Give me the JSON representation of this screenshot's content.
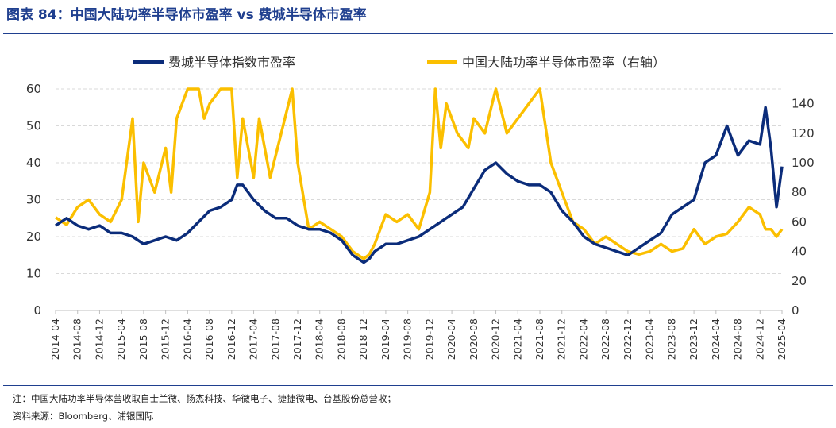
{
  "figure": {
    "title": "图表 84：中国大陆功率半导体市盈率 vs 费城半导体市盈率",
    "note": "注：中国大陆功率半导体营收取自士兰微、扬杰科技、华微电子、捷捷微电、台基股份总营收；",
    "source": "资料来源：Bloomberg、浦银国际"
  },
  "colors": {
    "sox": "#0b2c7a",
    "china": "#fbbf00",
    "grid": "#d9d9d9"
  },
  "chart_data": {
    "type": "line",
    "title": "",
    "legend_position": "top",
    "grid": true,
    "x_tick_labels": [
      "2014-04",
      "2014-08",
      "2014-12",
      "2015-04",
      "2015-08",
      "2015-12",
      "2016-04",
      "2016-08",
      "2016-12",
      "2017-04",
      "2017-08",
      "2017-12",
      "2018-04",
      "2018-08",
      "2018-12",
      "2019-04",
      "2019-08",
      "2019-12",
      "2020-04",
      "2020-08",
      "2020-12",
      "2021-04",
      "2021-08",
      "2021-12",
      "2022-04",
      "2022-08",
      "2022-12",
      "2023-04",
      "2023-08",
      "2023-12",
      "2024-04",
      "2024-08",
      "2024-12",
      "2025-04"
    ],
    "y_left": {
      "min": 0,
      "max": 60,
      "ticks": [
        "0",
        "10",
        "20",
        "30",
        "40",
        "50",
        "60"
      ]
    },
    "y_right": {
      "min": 0,
      "max": 150,
      "ticks": [
        "0",
        "20",
        "40",
        "60",
        "80",
        "100",
        "120",
        "140"
      ]
    },
    "series": [
      {
        "name": "费城半导体指数市盈率",
        "axis": "left",
        "x": [
          "2014-04",
          "2014-06",
          "2014-08",
          "2014-10",
          "2014-12",
          "2015-02",
          "2015-04",
          "2015-06",
          "2015-08",
          "2015-10",
          "2015-12",
          "2016-02",
          "2016-04",
          "2016-06",
          "2016-08",
          "2016-10",
          "2016-12",
          "2017-01",
          "2017-02",
          "2017-04",
          "2017-06",
          "2017-08",
          "2017-10",
          "2017-12",
          "2018-02",
          "2018-04",
          "2018-06",
          "2018-08",
          "2018-10",
          "2018-12",
          "2019-01",
          "2019-02",
          "2019-04",
          "2019-06",
          "2019-08",
          "2019-10",
          "2019-12",
          "2020-02",
          "2020-04",
          "2020-06",
          "2020-08",
          "2020-10",
          "2020-12",
          "2021-02",
          "2021-04",
          "2021-06",
          "2021-08",
          "2021-10",
          "2021-12",
          "2022-02",
          "2022-04",
          "2022-06",
          "2022-08",
          "2022-10",
          "2022-12",
          "2023-02",
          "2023-04",
          "2023-06",
          "2023-08",
          "2023-10",
          "2023-12",
          "2024-02",
          "2024-04",
          "2024-06",
          "2024-08",
          "2024-10",
          "2024-12",
          "2025-01",
          "2025-02",
          "2025-03",
          "2025-04"
        ],
        "values": [
          23,
          25,
          23,
          22,
          23,
          21,
          21,
          20,
          18,
          19,
          20,
          19,
          21,
          24,
          27,
          28,
          30,
          34,
          34,
          30,
          27,
          25,
          25,
          23,
          22,
          22,
          21,
          19,
          15,
          13,
          14,
          16,
          18,
          18,
          19,
          20,
          22,
          24,
          26,
          28,
          33,
          38,
          40,
          37,
          35,
          34,
          34,
          32,
          27,
          24,
          20,
          18,
          17,
          16,
          15,
          17,
          19,
          21,
          26,
          28,
          30,
          40,
          42,
          50,
          42,
          46,
          45,
          55,
          44,
          28,
          39
        ]
      },
      {
        "name": "中国大陆功率半导体市盈率（右轴）",
        "axis": "right",
        "x": [
          "2014-04",
          "2014-06",
          "2014-08",
          "2014-10",
          "2014-12",
          "2015-02",
          "2015-04",
          "2015-06",
          "2015-07",
          "2015-08",
          "2015-10",
          "2015-12",
          "2016-01",
          "2016-02",
          "2016-04",
          "2016-06",
          "2016-07",
          "2016-08",
          "2016-10",
          "2016-12",
          "2017-01",
          "2017-02",
          "2017-04",
          "2017-05",
          "2017-07",
          "2017-09",
          "2017-11",
          "2017-12",
          "2018-02",
          "2018-04",
          "2018-06",
          "2018-08",
          "2018-10",
          "2018-12",
          "2019-01",
          "2019-02",
          "2019-04",
          "2019-06",
          "2019-08",
          "2019-10",
          "2019-12",
          "2020-01",
          "2020-02",
          "2020-03",
          "2020-05",
          "2020-07",
          "2020-08",
          "2020-10",
          "2020-12",
          "2021-02",
          "2021-04",
          "2021-06",
          "2021-08",
          "2021-10",
          "2021-12",
          "2022-02",
          "2022-04",
          "2022-06",
          "2022-08",
          "2022-10",
          "2022-12",
          "2023-02",
          "2023-04",
          "2023-06",
          "2023-08",
          "2023-10",
          "2023-12",
          "2024-02",
          "2024-04",
          "2024-06",
          "2024-08",
          "2024-10",
          "2024-12",
          "2025-01",
          "2025-02",
          "2025-03",
          "2025-04"
        ],
        "values": [
          63,
          58,
          70,
          75,
          65,
          60,
          75,
          130,
          60,
          100,
          80,
          110,
          80,
          130,
          150,
          150,
          130,
          140,
          150,
          160,
          90,
          130,
          90,
          130,
          90,
          120,
          150,
          100,
          55,
          60,
          55,
          50,
          40,
          35,
          38,
          45,
          65,
          60,
          65,
          55,
          80,
          150,
          110,
          140,
          120,
          110,
          130,
          120,
          150,
          120,
          130,
          140,
          150,
          100,
          80,
          60,
          55,
          45,
          50,
          45,
          40,
          38,
          40,
          45,
          40,
          42,
          55,
          45,
          50,
          52,
          60,
          70,
          65,
          55,
          55,
          50,
          55
        ]
      }
    ]
  }
}
